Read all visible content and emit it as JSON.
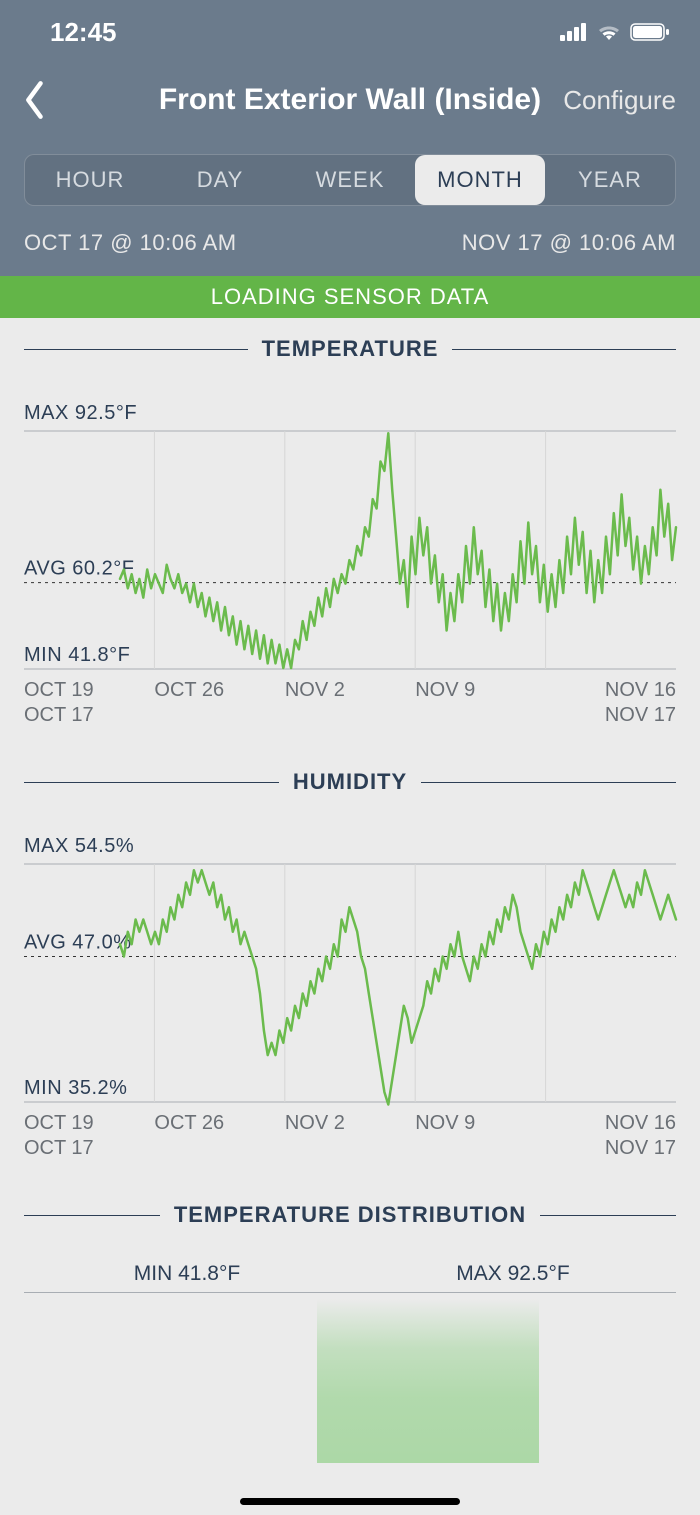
{
  "status": {
    "time": "12:45"
  },
  "nav": {
    "title": "Front Exterior Wall (Inside)",
    "configure": "Configure"
  },
  "segments": {
    "items": [
      "HOUR",
      "DAY",
      "WEEK",
      "MONTH",
      "YEAR"
    ],
    "active_index": 3
  },
  "range": {
    "start": "OCT 17 @ 10:06 AM",
    "end": "NOV 17 @ 10:06 AM"
  },
  "banner": "LOADING SENSOR DATA",
  "colors": {
    "header_bg": "#6b7b8c",
    "accent": "#63b548",
    "line": "#6bbb4d",
    "title_text": "#2c3e55",
    "muted": "#6a6f75",
    "bg": "#ebebeb",
    "rule": "#a8adb3"
  },
  "temperature": {
    "title": "TEMPERATURE",
    "max_label": "MAX 92.5°F",
    "avg_label": "AVG 60.2°F",
    "min_label": "MIN 41.8°F",
    "ymin": 41.8,
    "ymax": 92.5,
    "yavg": 60.2,
    "x_ticks": [
      "OCT 19",
      "OCT 26",
      "NOV 2",
      "NOV 9",
      "NOV 16"
    ],
    "range_sub": {
      "start": "OCT 17",
      "end": "NOV 17"
    },
    "type": "line",
    "line_color": "#6bbb4d",
    "line_width": 2.5,
    "grid_color": "#d6d6d6",
    "avg_dash": "3,4",
    "values": [
      61,
      63,
      59,
      62,
      58,
      61,
      57,
      63,
      59,
      62,
      60,
      58,
      64,
      61,
      59,
      62,
      58,
      60,
      56,
      60,
      55,
      58,
      53,
      57,
      52,
      56,
      50,
      55,
      49,
      53,
      47,
      52,
      46,
      51,
      45,
      50,
      44,
      49,
      43,
      48,
      43,
      47,
      42,
      46,
      42,
      48,
      46,
      52,
      48,
      54,
      51,
      57,
      53,
      59,
      55,
      61,
      58,
      62,
      60,
      65,
      63,
      68,
      66,
      72,
      70,
      78,
      76,
      86,
      84,
      92,
      80,
      70,
      60,
      65,
      55,
      70,
      62,
      74,
      66,
      72,
      60,
      66,
      56,
      62,
      50,
      58,
      52,
      62,
      56,
      68,
      60,
      72,
      62,
      67,
      55,
      63,
      52,
      60,
      50,
      58,
      52,
      62,
      56,
      69,
      60,
      73,
      62,
      68,
      56,
      64,
      54,
      62,
      55,
      65,
      58,
      70,
      62,
      74,
      64,
      71,
      58,
      67,
      56,
      65,
      58,
      70,
      62,
      75,
      66,
      79,
      68,
      74,
      63,
      70,
      60,
      68,
      62,
      72,
      66,
      80,
      70,
      77,
      65,
      72
    ]
  },
  "humidity": {
    "title": "HUMIDITY",
    "max_label": "MAX 54.5%",
    "avg_label": "AVG 47.0%",
    "min_label": "MIN 35.2%",
    "ymin": 35.2,
    "ymax": 54.5,
    "yavg": 47.0,
    "x_ticks": [
      "OCT 19",
      "OCT 26",
      "NOV 2",
      "NOV 9",
      "NOV 16"
    ],
    "range_sub": {
      "start": "OCT 17",
      "end": "NOV 17"
    },
    "type": "line",
    "line_color": "#6bbb4d",
    "line_width": 2.5,
    "grid_color": "#d6d6d6",
    "avg_dash": "3,4",
    "values": [
      48,
      47,
      49,
      48,
      50,
      49,
      50,
      49,
      48,
      49,
      48,
      50,
      49,
      51,
      50,
      52,
      51,
      53,
      52,
      54,
      53,
      54,
      53,
      52,
      53,
      51,
      52,
      50,
      51,
      49,
      50,
      48,
      49,
      48,
      47,
      46,
      44,
      41,
      39,
      40,
      39,
      41,
      40,
      42,
      41,
      43,
      42,
      44,
      43,
      45,
      44,
      46,
      45,
      47,
      46,
      48,
      47,
      50,
      49,
      51,
      50,
      49,
      47,
      46,
      44,
      42,
      40,
      38,
      36,
      35,
      37,
      39,
      41,
      43,
      42,
      40,
      41,
      42,
      43,
      45,
      44,
      46,
      45,
      47,
      46,
      48,
      47,
      49,
      47,
      46,
      45,
      47,
      46,
      48,
      47,
      49,
      48,
      50,
      49,
      51,
      50,
      52,
      51,
      49,
      48,
      47,
      46,
      48,
      47,
      49,
      48,
      50,
      49,
      51,
      50,
      52,
      51,
      53,
      52,
      54,
      53,
      52,
      51,
      50,
      51,
      52,
      53,
      54,
      53,
      52,
      51,
      52,
      51,
      53,
      52,
      54,
      53,
      52,
      51,
      50,
      51,
      52,
      51,
      50
    ]
  },
  "distribution": {
    "title": "TEMPERATURE DISTRIBUTION",
    "min_label": "MIN 41.8°F",
    "max_label": "MAX 92.5°F",
    "band": {
      "left_pct": 45,
      "width_pct": 34,
      "color": "rgba(120,200,110,0.5)"
    }
  }
}
